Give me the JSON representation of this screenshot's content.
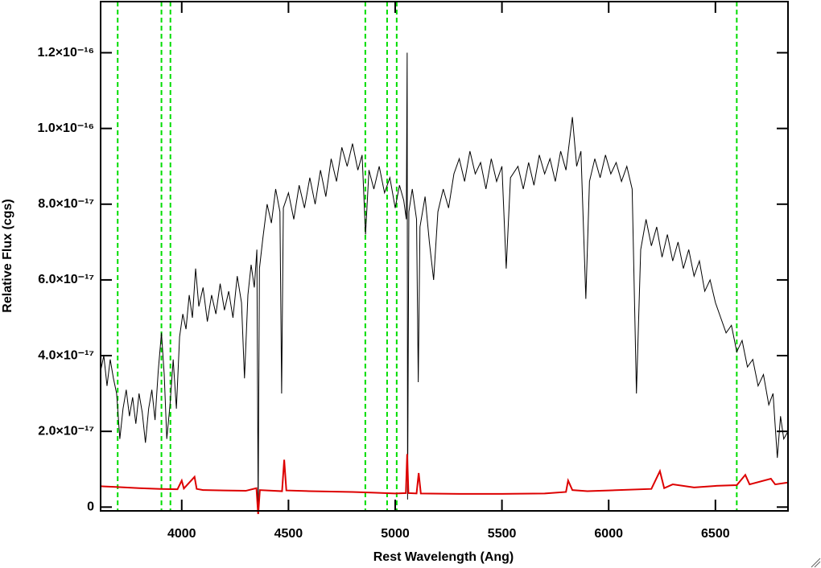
{
  "chart_data": {
    "type": "line",
    "xlabel": "Rest Wavelength (Ang)",
    "ylabel": "Relative Flux (cgs)",
    "xlim": [
      3620,
      6840
    ],
    "ylim": [
      -1e-18,
      1.335e-16
    ],
    "xticks": [
      4000,
      4500,
      5000,
      5500,
      6000,
      6500
    ],
    "yticks": [
      0,
      {
        "value": 2e-17,
        "label": "2.0×10⁻¹⁷"
      },
      {
        "value": 4e-17,
        "label": "4.0×10⁻¹⁷"
      },
      {
        "value": 6e-17,
        "label": "6.0×10⁻¹⁷"
      },
      {
        "value": 8e-17,
        "label": "8.0×10⁻¹⁷"
      },
      {
        "value": 1e-16,
        "label": "1.0×10⁻¹⁶"
      },
      {
        "value": 1.2e-16,
        "label": "1.2×10⁻¹⁶"
      }
    ],
    "reference_lines": {
      "x": [
        3700,
        3905,
        3947,
        4860,
        4962,
        5007,
        6600
      ],
      "color": "#00dd00"
    },
    "series": [
      {
        "color": "#000000",
        "x": [
          3620,
          3635,
          3650,
          3665,
          3680,
          3695,
          3710,
          3725,
          3740,
          3755,
          3770,
          3785,
          3800,
          3815,
          3830,
          3845,
          3860,
          3875,
          3890,
          3905,
          3918,
          3930,
          3945,
          3960,
          3975,
          3990,
          4005,
          4020,
          4035,
          4050,
          4065,
          4080,
          4100,
          4120,
          4140,
          4160,
          4180,
          4200,
          4220,
          4240,
          4260,
          4280,
          4294,
          4310,
          4325,
          4340,
          4352,
          4358,
          4364,
          4380,
          4400,
          4420,
          4440,
          4460,
          4468,
          4476,
          4500,
          4525,
          4550,
          4575,
          4600,
          4625,
          4650,
          4675,
          4700,
          4725,
          4750,
          4775,
          4800,
          4825,
          4845,
          4861,
          4877,
          4900,
          4925,
          4950,
          4975,
          5000,
          5020,
          5040,
          5052,
          5056,
          5058,
          5064,
          5080,
          5100,
          5108,
          5116,
          5140,
          5160,
          5180,
          5200,
          5225,
          5250,
          5275,
          5300,
          5325,
          5350,
          5375,
          5400,
          5425,
          5450,
          5475,
          5500,
          5520,
          5540,
          5575,
          5600,
          5625,
          5650,
          5675,
          5700,
          5725,
          5750,
          5775,
          5800,
          5830,
          5850,
          5870,
          5893,
          5910,
          5935,
          5960,
          5985,
          6010,
          6035,
          6060,
          6085,
          6110,
          6130,
          6150,
          6175,
          6200,
          6225,
          6250,
          6275,
          6300,
          6325,
          6350,
          6375,
          6400,
          6425,
          6450,
          6475,
          6500,
          6525,
          6550,
          6575,
          6600,
          6625,
          6650,
          6675,
          6700,
          6725,
          6750,
          6770,
          6790,
          6805,
          6820,
          6840
        ],
        "values": [
          3.6e-17,
          4e-17,
          3.2e-17,
          3.9e-17,
          3.4e-17,
          3e-17,
          1.8e-17,
          2.6e-17,
          3.1e-17,
          2.4e-17,
          2.9e-17,
          2.2e-17,
          3e-17,
          2.5e-17,
          1.7e-17,
          2.6e-17,
          3.1e-17,
          2.3e-17,
          3.6e-17,
          4.6e-17,
          3.5e-17,
          1.8e-17,
          2.7e-17,
          3.9e-17,
          2.6e-17,
          4.5e-17,
          5.1e-17,
          4.7e-17,
          5.6e-17,
          5e-17,
          6.3e-17,
          5.3e-17,
          5.8e-17,
          4.9e-17,
          5.6e-17,
          5.1e-17,
          5.9e-17,
          5.2e-17,
          5.7e-17,
          5e-17,
          6.1e-17,
          5.4e-17,
          3.4e-17,
          5.6e-17,
          6.4e-17,
          5.8e-17,
          6.8e-17,
          0,
          6.3e-17,
          7.1e-17,
          8e-17,
          7.5e-17,
          8.4e-17,
          7.8e-17,
          3e-17,
          7.9e-17,
          8.3e-17,
          7.6e-17,
          8.5e-17,
          7.9e-17,
          8.7e-17,
          8e-17,
          8.9e-17,
          8.2e-17,
          9.2e-17,
          8.6e-17,
          9.5e-17,
          9e-17,
          9.6e-17,
          8.9e-17,
          9.3e-17,
          7.2e-17,
          8.9e-17,
          8.4e-17,
          9e-17,
          8.3e-17,
          8.7e-17,
          7.9e-17,
          8.5e-17,
          8.1e-17,
          7.6e-17,
          1.2e-16,
          2e-18,
          7.8e-17,
          8.4e-17,
          7.6e-17,
          3.3e-17,
          7.4e-17,
          8.2e-17,
          7e-17,
          6e-17,
          7.8e-17,
          8.4e-17,
          7.9e-17,
          8.8e-17,
          9.2e-17,
          8.6e-17,
          9.4e-17,
          8.8e-17,
          9.1e-17,
          8.4e-17,
          9.2e-17,
          8.6e-17,
          9e-17,
          6.3e-17,
          8.7e-17,
          9e-17,
          8.4e-17,
          9.1e-17,
          8.5e-17,
          9.3e-17,
          8.8e-17,
          9.2e-17,
          8.6e-17,
          9.4e-17,
          8.9e-17,
          1.03e-16,
          9e-17,
          9.4e-17,
          5.5e-17,
          8.6e-17,
          9.2e-17,
          8.7e-17,
          9.3e-17,
          8.8e-17,
          9.1e-17,
          8.6e-17,
          9e-17,
          8.4e-17,
          3e-17,
          6.8e-17,
          7.6e-17,
          6.9e-17,
          7.4e-17,
          6.6e-17,
          7.2e-17,
          6.5e-17,
          7e-17,
          6.3e-17,
          6.8e-17,
          6.1e-17,
          6.5e-17,
          5.7e-17,
          6e-17,
          5.4e-17,
          5e-17,
          4.6e-17,
          4.8e-17,
          4.1e-17,
          4.4e-17,
          3.7e-17,
          3.9e-17,
          3.2e-17,
          3.5e-17,
          2.7e-17,
          3e-17,
          1.3e-17,
          2.4e-17,
          1.8e-17,
          2e-17
        ]
      },
      {
        "color": "#dd0000",
        "x": [
          3620,
          3700,
          3800,
          3900,
          3980,
          4000,
          4010,
          4060,
          4070,
          4100,
          4200,
          4300,
          4350,
          4358,
          4366,
          4470,
          4480,
          4490,
          4600,
          4700,
          4800,
          4900,
          5000,
          5050,
          5056,
          5062,
          5100,
          5110,
          5120,
          5300,
          5500,
          5700,
          5800,
          5810,
          5830,
          5900,
          6000,
          6200,
          6240,
          6260,
          6300,
          6400,
          6500,
          6600,
          6640,
          6660,
          6760,
          6780,
          6840
        ],
        "values": [
          5.5e-18,
          5.3e-18,
          5e-18,
          4.8e-18,
          4.7e-18,
          7e-18,
          4.9e-18,
          8e-18,
          4.8e-18,
          4.5e-18,
          4.4e-18,
          4.3e-18,
          5e-18,
          -2e-18,
          4.5e-18,
          4.2e-18,
          1.25e-17,
          4.4e-18,
          4.2e-18,
          4.1e-18,
          4e-18,
          3.8e-18,
          3.6e-18,
          3.7e-18,
          1.4e-17,
          3.7e-18,
          3.6e-18,
          9e-18,
          3.6e-18,
          3.5e-18,
          3.5e-18,
          3.6e-18,
          4e-18,
          7e-18,
          4.5e-18,
          4.2e-18,
          4.4e-18,
          4.8e-18,
          9.5e-18,
          5e-18,
          6e-18,
          5.2e-18,
          5.6e-18,
          5.8e-18,
          8.5e-18,
          6e-18,
          7.5e-18,
          6e-18,
          6.5e-18
        ]
      }
    ]
  }
}
